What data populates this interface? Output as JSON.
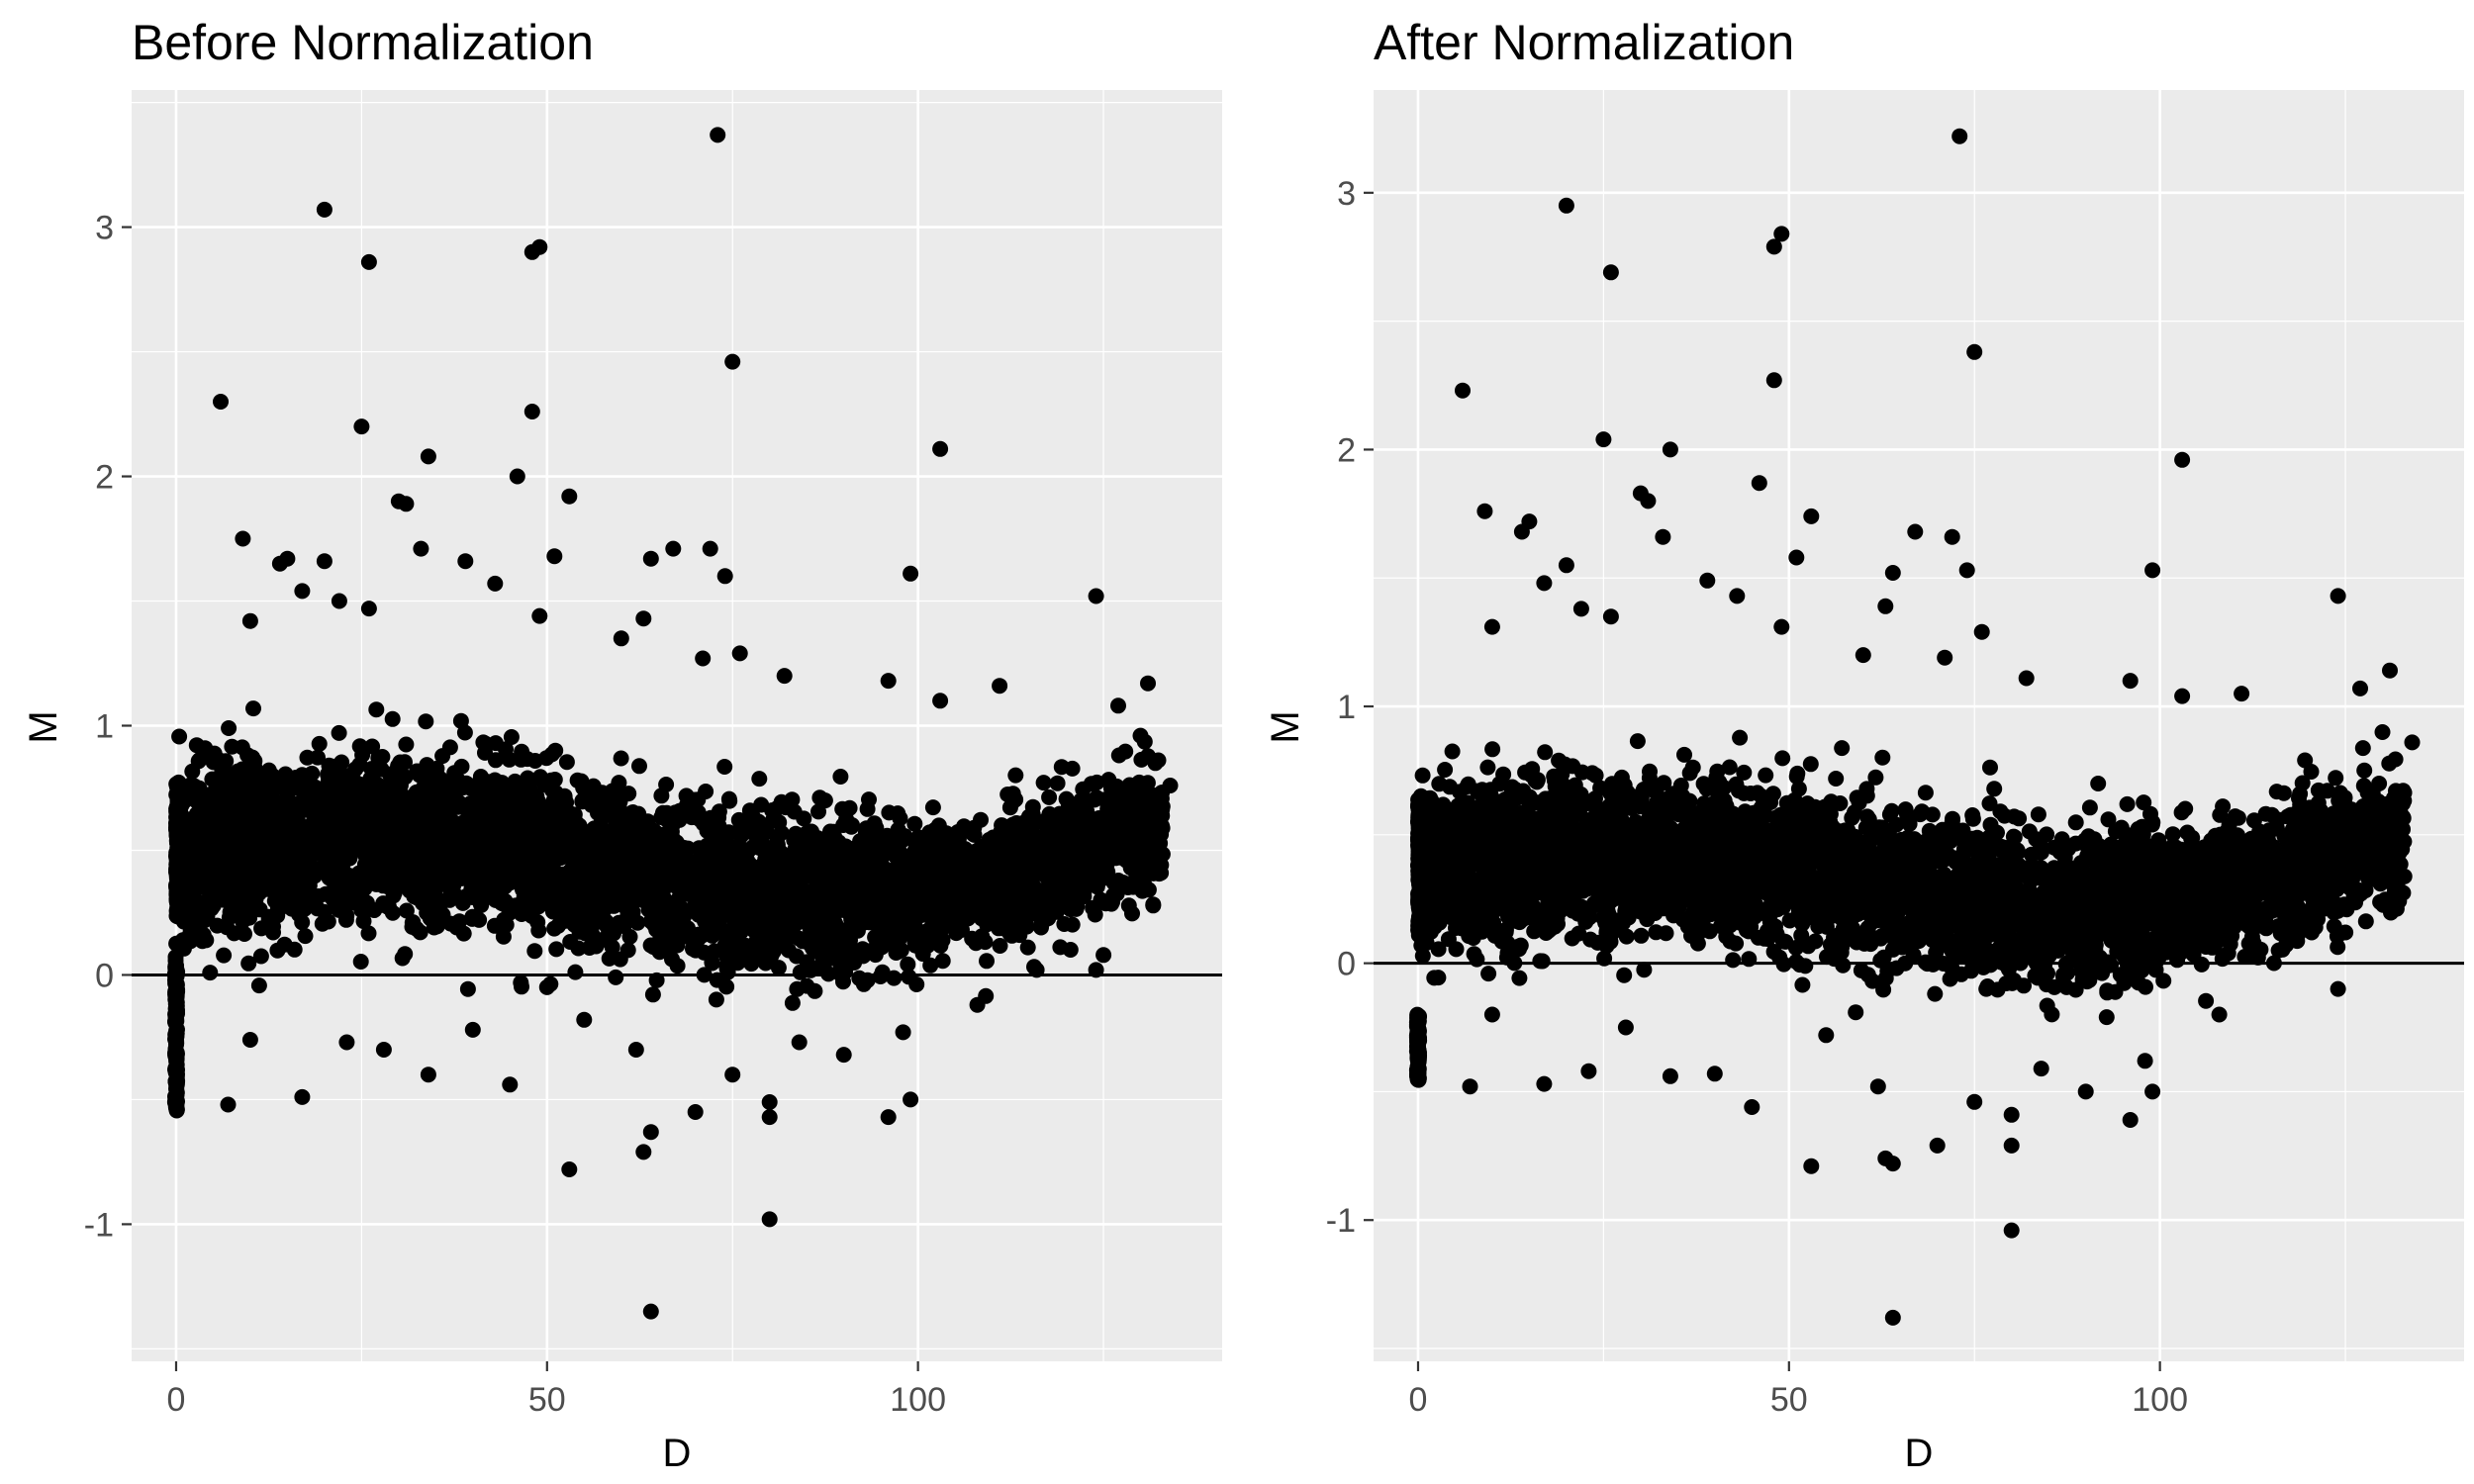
{
  "chart_data": [
    {
      "type": "scatter",
      "title": "Before Normalization",
      "xlabel": "D",
      "ylabel": "M",
      "xlim": [
        -6,
        141
      ],
      "ylim": [
        -1.55,
        3.55
      ],
      "x_ticks": [
        0,
        50,
        100
      ],
      "x_tick_labels": [
        "0",
        "50",
        "100"
      ],
      "y_ticks": [
        -1,
        0,
        1,
        2,
        3
      ],
      "y_tick_labels": [
        "-1",
        "0",
        "1",
        "2",
        "3"
      ],
      "hline": 0,
      "grid": true,
      "point_color": "#000000",
      "bulk_band": {
        "x_range": [
          0,
          133
        ],
        "center": [
          [
            0,
            0.5
          ],
          [
            20,
            0.55
          ],
          [
            45,
            0.52
          ],
          [
            60,
            0.42
          ],
          [
            85,
            0.3
          ],
          [
            110,
            0.38
          ],
          [
            133,
            0.62
          ]
        ],
        "spread": 0.3
      },
      "points": [
        {
          "x": 20,
          "y": 3.07
        },
        {
          "x": 26,
          "y": 2.86
        },
        {
          "x": 48,
          "y": 2.9
        },
        {
          "x": 49,
          "y": 2.92
        },
        {
          "x": 73,
          "y": 3.37
        },
        {
          "x": 75,
          "y": 2.46
        },
        {
          "x": 6,
          "y": 2.3
        },
        {
          "x": 25,
          "y": 2.2
        },
        {
          "x": 34,
          "y": 2.08
        },
        {
          "x": 48,
          "y": 2.26
        },
        {
          "x": 46,
          "y": 2.0
        },
        {
          "x": 103,
          "y": 2.11
        },
        {
          "x": 53,
          "y": 1.92
        },
        {
          "x": 30,
          "y": 1.9
        },
        {
          "x": 31,
          "y": 1.89
        },
        {
          "x": 9,
          "y": 1.75
        },
        {
          "x": 14,
          "y": 1.65
        },
        {
          "x": 15,
          "y": 1.67
        },
        {
          "x": 20,
          "y": 1.66
        },
        {
          "x": 33,
          "y": 1.71
        },
        {
          "x": 39,
          "y": 1.66
        },
        {
          "x": 51,
          "y": 1.68
        },
        {
          "x": 64,
          "y": 1.67
        },
        {
          "x": 67,
          "y": 1.71
        },
        {
          "x": 72,
          "y": 1.71
        },
        {
          "x": 74,
          "y": 1.6
        },
        {
          "x": 99,
          "y": 1.61
        },
        {
          "x": 124,
          "y": 1.52
        },
        {
          "x": 43,
          "y": 1.57
        },
        {
          "x": 17,
          "y": 1.54
        },
        {
          "x": 22,
          "y": 1.5
        },
        {
          "x": 26,
          "y": 1.47
        },
        {
          "x": 10,
          "y": 1.42
        },
        {
          "x": 63,
          "y": 1.43
        },
        {
          "x": 49,
          "y": 1.44
        },
        {
          "x": 60,
          "y": 1.35
        },
        {
          "x": 71,
          "y": 1.27
        },
        {
          "x": 76,
          "y": 1.29
        },
        {
          "x": 82,
          "y": 1.2
        },
        {
          "x": 96,
          "y": 1.18
        },
        {
          "x": 111,
          "y": 1.16
        },
        {
          "x": 131,
          "y": 1.17
        },
        {
          "x": 103,
          "y": 1.1
        },
        {
          "x": 127,
          "y": 1.08
        },
        {
          "x": 130,
          "y": 0.96
        },
        {
          "x": 134,
          "y": 0.76
        },
        {
          "x": 132,
          "y": 0.85
        },
        {
          "x": 7,
          "y": -0.52
        },
        {
          "x": 17,
          "y": -0.49
        },
        {
          "x": 10,
          "y": -0.26
        },
        {
          "x": 23,
          "y": -0.27
        },
        {
          "x": 34,
          "y": -0.4
        },
        {
          "x": 45,
          "y": -0.44
        },
        {
          "x": 53,
          "y": -0.78
        },
        {
          "x": 63,
          "y": -0.71
        },
        {
          "x": 64,
          "y": -0.63
        },
        {
          "x": 64,
          "y": -1.35
        },
        {
          "x": 70,
          "y": -0.55
        },
        {
          "x": 80,
          "y": -0.51
        },
        {
          "x": 80,
          "y": -0.57
        },
        {
          "x": 80,
          "y": -0.98
        },
        {
          "x": 96,
          "y": -0.57
        },
        {
          "x": 99,
          "y": -0.5
        },
        {
          "x": 75,
          "y": -0.4
        },
        {
          "x": 90,
          "y": -0.32
        },
        {
          "x": 62,
          "y": -0.3
        },
        {
          "x": 84,
          "y": -0.27
        },
        {
          "x": 55,
          "y": -0.18
        },
        {
          "x": 28,
          "y": -0.3
        },
        {
          "x": 40,
          "y": -0.22
        },
        {
          "x": 98,
          "y": -0.23
        },
        {
          "x": 108,
          "y": -0.12
        },
        {
          "x": 124,
          "y": 0.02
        },
        {
          "x": 116,
          "y": 0.02
        },
        {
          "x": 125,
          "y": 0.08
        }
      ],
      "zero_column": {
        "x": 0,
        "y_from": -0.55,
        "y_to": 0.08
      }
    },
    {
      "type": "scatter",
      "title": "After Normalization",
      "xlabel": "D",
      "ylabel": "M",
      "xlim": [
        -6,
        141
      ],
      "ylim": [
        -1.55,
        3.4
      ],
      "x_ticks": [
        0,
        50,
        100
      ],
      "x_tick_labels": [
        "0",
        "50",
        "100"
      ],
      "y_ticks": [
        -1,
        0,
        1,
        2,
        3
      ],
      "y_tick_labels": [
        "-1",
        "0",
        "1",
        "2",
        "3"
      ],
      "hline": 0,
      "grid": true,
      "point_color": "#000000",
      "bulk_band": {
        "x_range": [
          0,
          133
        ],
        "center": [
          [
            0,
            0.38
          ],
          [
            20,
            0.42
          ],
          [
            45,
            0.4
          ],
          [
            60,
            0.32
          ],
          [
            85,
            0.2
          ],
          [
            110,
            0.28
          ],
          [
            133,
            0.5
          ]
        ],
        "spread": 0.28
      },
      "points": [
        {
          "x": 20,
          "y": 2.95
        },
        {
          "x": 26,
          "y": 2.69
        },
        {
          "x": 48,
          "y": 2.79
        },
        {
          "x": 49,
          "y": 2.84
        },
        {
          "x": 73,
          "y": 3.22
        },
        {
          "x": 75,
          "y": 2.38
        },
        {
          "x": 6,
          "y": 2.23
        },
        {
          "x": 25,
          "y": 2.04
        },
        {
          "x": 34,
          "y": 2.0
        },
        {
          "x": 48,
          "y": 2.27
        },
        {
          "x": 46,
          "y": 1.87
        },
        {
          "x": 103,
          "y": 1.96
        },
        {
          "x": 53,
          "y": 1.74
        },
        {
          "x": 30,
          "y": 1.83
        },
        {
          "x": 31,
          "y": 1.8
        },
        {
          "x": 9,
          "y": 1.76
        },
        {
          "x": 14,
          "y": 1.68
        },
        {
          "x": 15,
          "y": 1.72
        },
        {
          "x": 20,
          "y": 1.55
        },
        {
          "x": 33,
          "y": 1.66
        },
        {
          "x": 39,
          "y": 1.49
        },
        {
          "x": 51,
          "y": 1.58
        },
        {
          "x": 64,
          "y": 1.52
        },
        {
          "x": 67,
          "y": 1.68
        },
        {
          "x": 72,
          "y": 1.66
        },
        {
          "x": 74,
          "y": 1.53
        },
        {
          "x": 99,
          "y": 1.53
        },
        {
          "x": 124,
          "y": 1.43
        },
        {
          "x": 43,
          "y": 1.43
        },
        {
          "x": 17,
          "y": 1.48
        },
        {
          "x": 22,
          "y": 1.38
        },
        {
          "x": 26,
          "y": 1.35
        },
        {
          "x": 10,
          "y": 1.31
        },
        {
          "x": 63,
          "y": 1.39
        },
        {
          "x": 49,
          "y": 1.31
        },
        {
          "x": 60,
          "y": 1.2
        },
        {
          "x": 71,
          "y": 1.19
        },
        {
          "x": 76,
          "y": 1.29
        },
        {
          "x": 82,
          "y": 1.11
        },
        {
          "x": 96,
          "y": 1.1
        },
        {
          "x": 111,
          "y": 1.05
        },
        {
          "x": 131,
          "y": 1.14
        },
        {
          "x": 103,
          "y": 1.04
        },
        {
          "x": 127,
          "y": 1.07
        },
        {
          "x": 130,
          "y": 0.9
        },
        {
          "x": 134,
          "y": 0.86
        },
        {
          "x": 132,
          "y": 0.55
        },
        {
          "x": 7,
          "y": -0.48
        },
        {
          "x": 17,
          "y": -0.47
        },
        {
          "x": 10,
          "y": -0.2
        },
        {
          "x": 23,
          "y": -0.42
        },
        {
          "x": 34,
          "y": -0.44
        },
        {
          "x": 45,
          "y": -0.56
        },
        {
          "x": 53,
          "y": -0.79
        },
        {
          "x": 63,
          "y": -0.76
        },
        {
          "x": 64,
          "y": -0.78
        },
        {
          "x": 64,
          "y": -1.38
        },
        {
          "x": 70,
          "y": -0.71
        },
        {
          "x": 80,
          "y": -0.59
        },
        {
          "x": 80,
          "y": -0.71
        },
        {
          "x": 80,
          "y": -1.04
        },
        {
          "x": 96,
          "y": -0.61
        },
        {
          "x": 99,
          "y": -0.5
        },
        {
          "x": 75,
          "y": -0.54
        },
        {
          "x": 90,
          "y": -0.5
        },
        {
          "x": 62,
          "y": -0.48
        },
        {
          "x": 84,
          "y": -0.41
        },
        {
          "x": 55,
          "y": -0.28
        },
        {
          "x": 28,
          "y": -0.25
        },
        {
          "x": 40,
          "y": -0.43
        },
        {
          "x": 98,
          "y": -0.38
        },
        {
          "x": 108,
          "y": -0.2
        },
        {
          "x": 124,
          "y": -0.1
        },
        {
          "x": 116,
          "y": 0.05
        },
        {
          "x": 125,
          "y": 0.12
        }
      ],
      "zero_column": {
        "x": 0,
        "y_from": -0.46,
        "y_to": -0.2
      }
    }
  ]
}
